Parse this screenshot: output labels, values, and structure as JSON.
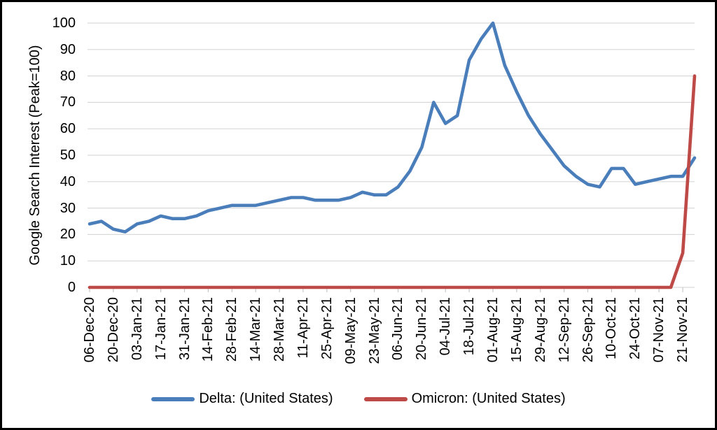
{
  "chart_data": {
    "type": "line",
    "title": "",
    "ylabel": "Google Search Interest (Peak=100)",
    "xlabel": "",
    "ylim": [
      0,
      100
    ],
    "y_tick_step": 10,
    "y_ticks": [
      0,
      10,
      20,
      30,
      40,
      50,
      60,
      70,
      80,
      90,
      100
    ],
    "grid": "horizontal",
    "legend_position": "bottom",
    "grid_color": "#d9d9d9",
    "tick_color": "#c8c8c8",
    "background": "#ffffff",
    "frame_color": "#000000",
    "x": [
      "06-Dec-20",
      "13-Dec-20",
      "20-Dec-20",
      "27-Dec-20",
      "03-Jan-21",
      "10-Jan-21",
      "17-Jan-21",
      "24-Jan-21",
      "31-Jan-21",
      "07-Feb-21",
      "14-Feb-21",
      "21-Feb-21",
      "28-Feb-21",
      "07-Mar-21",
      "14-Mar-21",
      "21-Mar-21",
      "28-Mar-21",
      "04-Apr-21",
      "11-Apr-21",
      "18-Apr-21",
      "25-Apr-21",
      "02-May-21",
      "09-May-21",
      "16-May-21",
      "23-May-21",
      "30-May-21",
      "06-Jun-21",
      "13-Jun-21",
      "20-Jun-21",
      "27-Jun-21",
      "04-Jul-21",
      "11-Jul-21",
      "18-Jul-21",
      "25-Jul-21",
      "01-Aug-21",
      "08-Aug-21",
      "15-Aug-21",
      "22-Aug-21",
      "29-Aug-21",
      "05-Sep-21",
      "12-Sep-21",
      "19-Sep-21",
      "26-Sep-21",
      "03-Oct-21",
      "10-Oct-21",
      "17-Oct-21",
      "24-Oct-21",
      "31-Oct-21",
      "07-Nov-21",
      "14-Nov-21",
      "21-Nov-21",
      "28-Nov-21"
    ],
    "x_tick_labels": [
      "06-Dec-20",
      "20-Dec-20",
      "03-Jan-21",
      "17-Jan-21",
      "31-Jan-21",
      "14-Feb-21",
      "28-Feb-21",
      "14-Mar-21",
      "28-Mar-21",
      "11-Apr-21",
      "25-Apr-21",
      "09-May-21",
      "23-May-21",
      "06-Jun-21",
      "20-Jun-21",
      "04-Jul-21",
      "18-Jul-21",
      "01-Aug-21",
      "15-Aug-21",
      "29-Aug-21",
      "12-Sep-21",
      "26-Sep-21",
      "10-Oct-21",
      "24-Oct-21",
      "07-Nov-21",
      "21-Nov-21"
    ],
    "series": [
      {
        "name": "Delta: (United States)",
        "color": "#4a7ebb",
        "values": [
          24,
          25,
          22,
          21,
          24,
          25,
          27,
          26,
          26,
          27,
          29,
          30,
          31,
          31,
          31,
          32,
          33,
          34,
          34,
          33,
          33,
          33,
          34,
          36,
          35,
          35,
          38,
          44,
          53,
          70,
          62,
          65,
          86,
          94,
          100,
          84,
          74,
          65,
          58,
          52,
          46,
          42,
          39,
          38,
          45,
          45,
          39,
          40,
          41,
          42,
          42,
          49
        ]
      },
      {
        "name": "Omicron: (United States)",
        "color": "#be4a47",
        "values": [
          0,
          0,
          0,
          0,
          0,
          0,
          0,
          0,
          0,
          0,
          0,
          0,
          0,
          0,
          0,
          0,
          0,
          0,
          0,
          0,
          0,
          0,
          0,
          0,
          0,
          0,
          0,
          0,
          0,
          0,
          0,
          0,
          0,
          0,
          0,
          0,
          0,
          0,
          0,
          0,
          0,
          0,
          0,
          0,
          0,
          0,
          0,
          0,
          0,
          0,
          13,
          80
        ]
      }
    ]
  }
}
